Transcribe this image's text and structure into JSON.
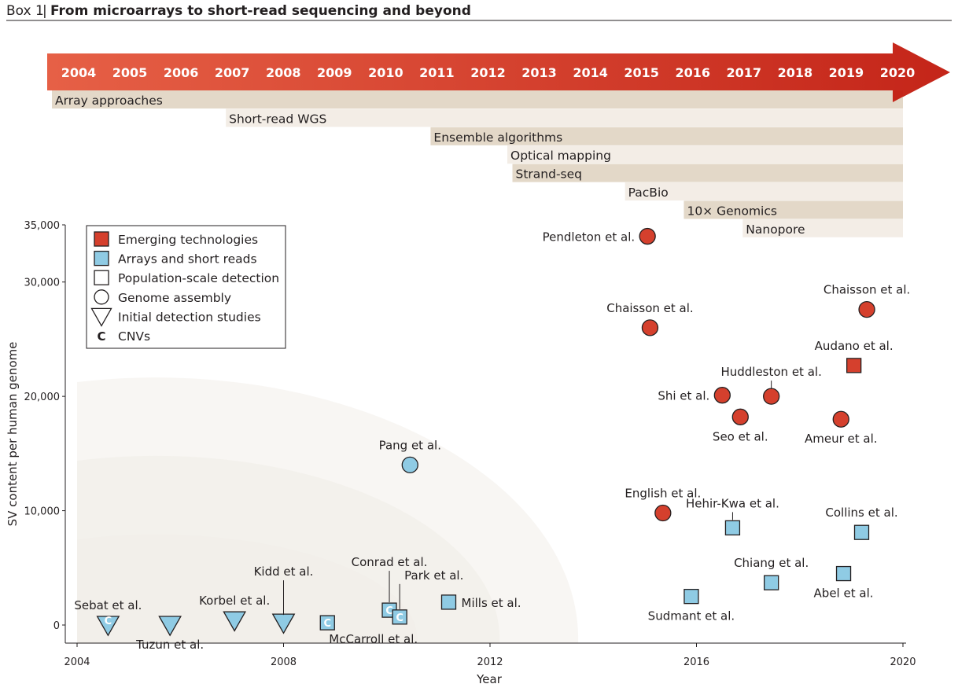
{
  "box": {
    "label": "Box 1",
    "separator": "|",
    "title": "From microarrays to short-read sequencing and beyond"
  },
  "colors": {
    "emerging": "#d5402d",
    "arrays": "#8fcbe4",
    "arrow_start": "#e66046",
    "arrow_end": "#c42519",
    "band_dark": "#e3d8c8",
    "band_light": "#f3ede6",
    "quadrant": "#f2efea",
    "ink": "#231f20"
  },
  "timeline": {
    "years": [
      "2004",
      "2005",
      "2006",
      "2007",
      "2008",
      "2009",
      "2010",
      "2011",
      "2012",
      "2013",
      "2014",
      "2015",
      "2016",
      "2017",
      "2018",
      "2019",
      "2020"
    ],
    "technologies": [
      {
        "label": "Array approaches",
        "start": 2004.0,
        "shade": "dark"
      },
      {
        "label": "Short-read WGS",
        "start": 2007.0,
        "shade": "light"
      },
      {
        "label": "Ensemble algorithms",
        "start": 2011.0,
        "shade": "dark"
      },
      {
        "label": "Optical mapping",
        "start": 2012.5,
        "shade": "light"
      },
      {
        "label": "Strand-seq",
        "start": 2012.6,
        "shade": "dark"
      },
      {
        "label": "PacBio",
        "start": 2014.8,
        "shade": "light"
      },
      {
        "label": "10× Genomics",
        "start": 2015.95,
        "shade": "dark"
      },
      {
        "label": "Nanopore",
        "start": 2017.1,
        "shade": "light"
      }
    ]
  },
  "chart_data": {
    "type": "scatter",
    "xlabel": "Year",
    "ylabel": "SV content per human genome",
    "xlim": [
      2004,
      2020
    ],
    "ylim": [
      -1500,
      36000
    ],
    "xticks": [
      2004,
      2008,
      2012,
      2016,
      2020
    ],
    "xtick_labels": [
      "2004",
      "2008",
      "2012",
      "2016",
      "2020"
    ],
    "yticks": [
      0,
      10000,
      20000,
      30000,
      35000
    ],
    "ytick_labels": [
      "0",
      "10,000",
      "20,000",
      "30,000",
      "35,000"
    ],
    "legend": {
      "position": "top-left",
      "entries": [
        {
          "symbol": "square",
          "fill": "emerging",
          "label": "Emerging technologies"
        },
        {
          "symbol": "square",
          "fill": "arrays",
          "label": "Arrays and short reads"
        },
        {
          "symbol": "square",
          "fill": "none",
          "label": "Population-scale detection"
        },
        {
          "symbol": "circle",
          "fill": "none",
          "label": "Genome assembly"
        },
        {
          "symbol": "triangle",
          "fill": "none",
          "label": "Initial detection studies"
        },
        {
          "symbol": "c",
          "fill": "none",
          "label": "CNVs"
        }
      ]
    },
    "points": [
      {
        "label": "Pendleton et al.",
        "x": 2015.05,
        "y": 34000,
        "shape": "circle",
        "tech": "emerging",
        "cnv": false,
        "label_pos": "left"
      },
      {
        "label": "Chaisson et al.",
        "x": 2015.1,
        "y": 26000,
        "shape": "circle",
        "tech": "emerging",
        "cnv": false,
        "label_pos": "above"
      },
      {
        "label": "Chaisson et al.",
        "x": 2019.3,
        "y": 27600,
        "shape": "circle",
        "tech": "emerging",
        "cnv": false,
        "label_pos": "above"
      },
      {
        "label": "Audano et al.",
        "x": 2019.05,
        "y": 22700,
        "shape": "square",
        "tech": "emerging",
        "cnv": false,
        "label_pos": "above"
      },
      {
        "label": "Huddleston et al.",
        "x": 2017.45,
        "y": 20000,
        "shape": "circle",
        "tech": "emerging",
        "cnv": false,
        "label_pos": "above-leader"
      },
      {
        "label": "Shi et al.",
        "x": 2016.5,
        "y": 20100,
        "shape": "circle",
        "tech": "emerging",
        "cnv": false,
        "label_pos": "left"
      },
      {
        "label": "Seo et al.",
        "x": 2016.85,
        "y": 18200,
        "shape": "circle",
        "tech": "emerging",
        "cnv": false,
        "label_pos": "below"
      },
      {
        "label": "Ameur et al.",
        "x": 2018.8,
        "y": 18000,
        "shape": "circle",
        "tech": "emerging",
        "cnv": false,
        "label_pos": "below"
      },
      {
        "label": "English et al.",
        "x": 2015.35,
        "y": 9800,
        "shape": "circle",
        "tech": "emerging",
        "cnv": false,
        "label_pos": "above"
      },
      {
        "label": "Pang et al.",
        "x": 2010.45,
        "y": 14000,
        "shape": "circle",
        "tech": "arrays",
        "cnv": false,
        "label_pos": "above"
      },
      {
        "label": "Hehir-Kwa et al.",
        "x": 2016.7,
        "y": 8500,
        "shape": "square",
        "tech": "arrays",
        "cnv": false,
        "label_pos": "above-leader"
      },
      {
        "label": "Collins et al.",
        "x": 2019.2,
        "y": 8100,
        "shape": "square",
        "tech": "arrays",
        "cnv": false,
        "label_pos": "above"
      },
      {
        "label": "Chiang et al.",
        "x": 2017.45,
        "y": 3700,
        "shape": "square",
        "tech": "arrays",
        "cnv": false,
        "label_pos": "above"
      },
      {
        "label": "Abel et al.",
        "x": 2018.85,
        "y": 4500,
        "shape": "square",
        "tech": "arrays",
        "cnv": false,
        "label_pos": "below"
      },
      {
        "label": "Sudmant et al.",
        "x": 2015.9,
        "y": 2500,
        "shape": "square",
        "tech": "arrays",
        "cnv": false,
        "label_pos": "below"
      },
      {
        "label": "Mills et al.",
        "x": 2011.2,
        "y": 2000,
        "shape": "square",
        "tech": "arrays",
        "cnv": false,
        "label_pos": "right"
      },
      {
        "label": "Conrad et al.",
        "x": 2010.05,
        "y": 1300,
        "shape": "square",
        "tech": "arrays",
        "cnv": true,
        "label_pos": "above-leader"
      },
      {
        "label": "Park et al.",
        "x": 2010.25,
        "y": 700,
        "shape": "square",
        "tech": "arrays",
        "cnv": true,
        "label_pos": "above-leader"
      },
      {
        "label": "McCarroll et al.",
        "x": 2008.85,
        "y": 200,
        "shape": "square",
        "tech": "arrays",
        "cnv": true,
        "label_pos": "below-right"
      },
      {
        "label": "Sebat et al.",
        "x": 2004.6,
        "y": 0,
        "shape": "triangle",
        "tech": "arrays",
        "cnv": true,
        "label_pos": "above"
      },
      {
        "label": "Tuzun et al.",
        "x": 2005.8,
        "y": 0,
        "shape": "triangle",
        "tech": "arrays",
        "cnv": false,
        "label_pos": "below"
      },
      {
        "label": "Korbel et al.",
        "x": 2007.05,
        "y": 400,
        "shape": "triangle",
        "tech": "arrays",
        "cnv": false,
        "label_pos": "above"
      },
      {
        "label": "Kidd et al.",
        "x": 2008.0,
        "y": 200,
        "shape": "triangle",
        "tech": "arrays",
        "cnv": false,
        "label_pos": "above-leader"
      }
    ]
  }
}
